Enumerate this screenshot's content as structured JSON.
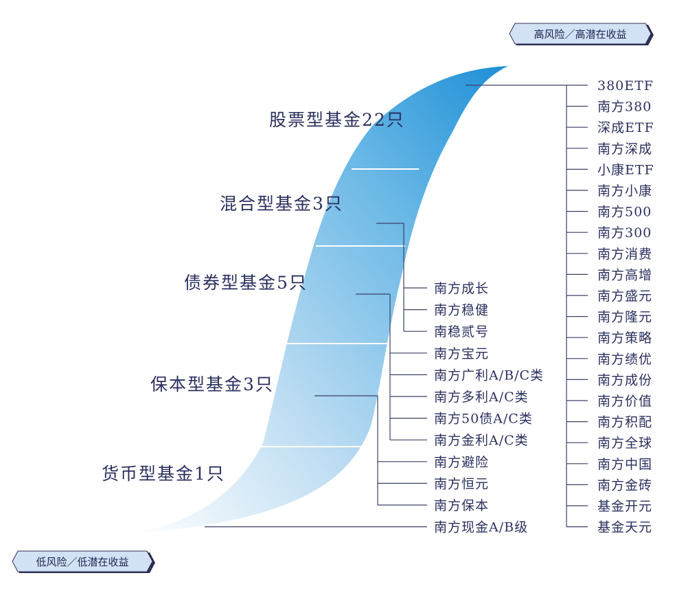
{
  "risk_labels": {
    "high": "高风险／高潜在收益",
    "low": "低风险／低潜在收益"
  },
  "categories": [
    "股票型基金22只",
    "混合型基金3只",
    "债券型基金5只",
    "保本型基金3只",
    "货币型基金1只"
  ],
  "stock_funds": [
    "380ETF",
    "南方380",
    "深成ETF",
    "南方深成",
    "小康ETF",
    "南方小康",
    "南方500",
    "南方300",
    "南方消费",
    "南方高增",
    "南方盛元",
    "南方隆元",
    "南方策略",
    "南方绩优",
    "南方成份",
    "南方价值",
    "南方积配",
    "南方全球",
    "南方中国",
    "南方金砖",
    "基金开元",
    "基金天元"
  ],
  "mixed_funds": [
    "南方成长",
    "南方稳健",
    "南稳贰号"
  ],
  "bond_funds": [
    "南方宝元",
    "南方广利A/B/C类",
    "南方多利A/C类",
    "南方50债A/C类",
    "南方金利A/C类"
  ],
  "guaranteed_funds": [
    "南方避险",
    "南方恒元",
    "南方保本"
  ],
  "money_funds": [
    "南方现金A/B级"
  ],
  "colors": {
    "ribbon_top": "#1e8fd6",
    "ribbon_bottom": "#ffffff",
    "text": "#2a2f5e",
    "badge_fill": "#d2e1f4",
    "badge_edge": "#2c2f52"
  }
}
